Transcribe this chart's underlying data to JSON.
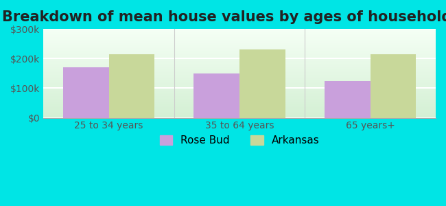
{
  "title": "Breakdown of mean house values by ages of householders",
  "categories": [
    "25 to 34 years",
    "35 to 64 years",
    "65 years+"
  ],
  "series": {
    "Rose Bud": [
      170000,
      150000,
      125000
    ],
    "Arkansas": [
      215000,
      230000,
      215000
    ]
  },
  "colors": {
    "Rose Bud": "#c9a0dc",
    "Arkansas": "#c8d89a"
  },
  "ylim": [
    0,
    300000
  ],
  "yticks": [
    0,
    100000,
    200000,
    300000
  ],
  "ytick_labels": [
    "$0",
    "$100k",
    "$200k",
    "$300k"
  ],
  "background_color": "#00e5e5",
  "title_fontsize": 15,
  "tick_fontsize": 10,
  "legend_fontsize": 11,
  "bar_width": 0.35
}
